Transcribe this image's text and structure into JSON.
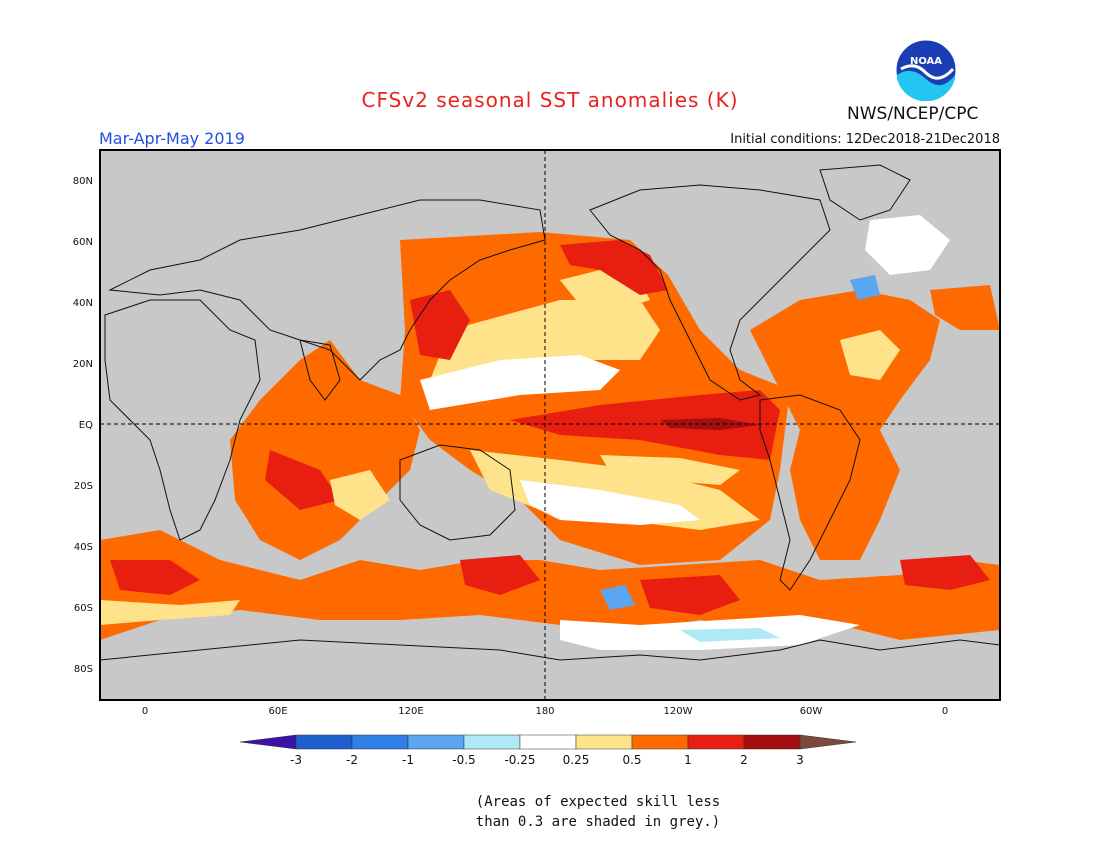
{
  "title": "CFSv2 seasonal SST anomalies (K)",
  "period": "Mar-Apr-May 2019",
  "initial_conditions": "Initial conditions: 12Dec2018-21Dec2018",
  "agency": "NWS/NCEP/CPC",
  "logo_text": "NOAA",
  "lat_labels": [
    "80N",
    "60N",
    "40N",
    "20N",
    "EQ",
    "20S",
    "40S",
    "60S",
    "80S"
  ],
  "lon_labels": [
    "0",
    "60E",
    "120E",
    "180",
    "120W",
    "60W",
    "0"
  ],
  "colorbar": {
    "tick_labels": [
      "-3",
      "-2",
      "-1",
      "-0.5",
      "-0.25",
      "0.25",
      "0.5",
      "1",
      "2",
      "3"
    ],
    "colors": [
      "#3a12a8",
      "#1e5fd0",
      "#2f7fe6",
      "#5aa6f0",
      "#aeeaf6",
      "#ffffff",
      "#ffe38a",
      "#ff6a00",
      "#e81e10",
      "#a50e0e",
      "#7b4a3a"
    ]
  },
  "footnote": "(Areas of expected skill less\nthan 0.3 are shaded in grey.)",
  "colors": {
    "title": "#e8231f",
    "period": "#1f4fe0",
    "no_skill": "#c8c8c8"
  }
}
